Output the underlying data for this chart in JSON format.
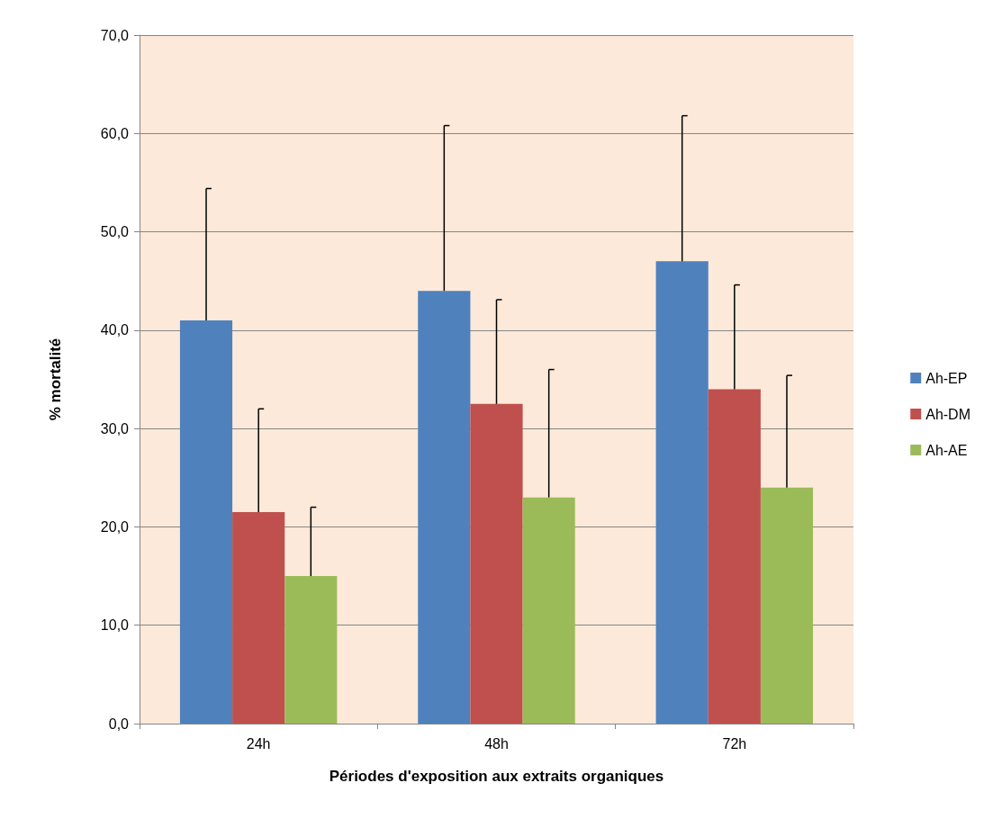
{
  "chart_data": {
    "type": "bar",
    "xlabel": "Périodes d'exposition aux extraits organiques",
    "ylabel": "% mortalité",
    "categories": [
      "24h",
      "48h",
      "72h"
    ],
    "series": [
      {
        "name": "Ah-EP",
        "color": "#4f81bd",
        "values": [
          41.0,
          44.0,
          47.0
        ],
        "errors": [
          [
            41.0,
            54.4
          ],
          [
            44.0,
            60.8
          ],
          [
            47.0,
            61.8
          ]
        ]
      },
      {
        "name": "Ah-DM",
        "color": "#c0504d",
        "values": [
          21.5,
          32.5,
          34.0
        ],
        "errors": [
          [
            21.5,
            32.0
          ],
          [
            32.5,
            43.1
          ],
          [
            34.0,
            44.6
          ]
        ]
      },
      {
        "name": "Ah-AE",
        "color": "#9bbb59",
        "values": [
          15.0,
          23.0,
          24.0
        ],
        "errors": [
          [
            15.0,
            22.0
          ],
          [
            23.0,
            36.0
          ],
          [
            24.0,
            35.4
          ]
        ]
      }
    ],
    "ylim": [
      0,
      70
    ],
    "yticks": [
      {
        "value": 0,
        "label": "0,0"
      },
      {
        "value": 10,
        "label": "10,0"
      },
      {
        "value": 20,
        "label": "20,0"
      },
      {
        "value": 30,
        "label": "30,0"
      },
      {
        "value": 40,
        "label": "40,0"
      },
      {
        "value": 50,
        "label": "50,0"
      },
      {
        "value": 60,
        "label": "60,0"
      },
      {
        "value": 70,
        "label": "70,0"
      }
    ],
    "grid": "y",
    "legend": "right"
  }
}
